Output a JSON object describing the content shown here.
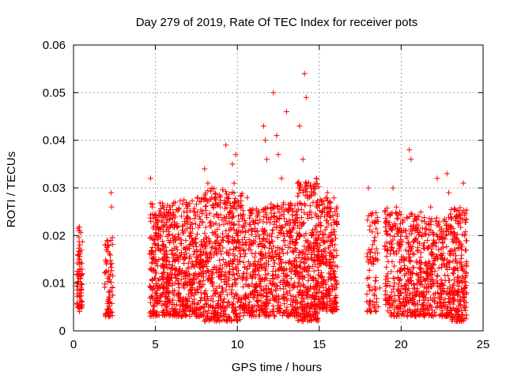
{
  "chart_data": {
    "type": "scatter",
    "title": "Day 279 of 2019, Rate Of TEC Index for receiver pots",
    "xlabel": "GPS time / hours",
    "ylabel": "ROTI / TECUs",
    "xlim": [
      0,
      25
    ],
    "ylim": [
      0,
      0.06
    ],
    "x_ticks": [
      0,
      5,
      10,
      15,
      20,
      25
    ],
    "x_tick_labels": [
      "0",
      "5",
      "10",
      "15",
      "20",
      "25"
    ],
    "y_ticks": [
      0,
      0.01,
      0.02,
      0.03,
      0.04,
      0.05,
      0.06
    ],
    "y_tick_labels": [
      "0",
      "0.01",
      "0.02",
      "0.03",
      "0.04",
      "0.05",
      "0.06"
    ],
    "grid": true,
    "marker": "+",
    "marker_color": "#ff0000",
    "series": [
      {
        "name": "ROTI",
        "points": [
          [
            0.3,
            0.016
          ],
          [
            0.35,
            0.021
          ],
          [
            0.4,
            0.013
          ],
          [
            0.45,
            0.009
          ],
          [
            0.5,
            0.005
          ],
          [
            0.38,
            0.018
          ],
          [
            0.42,
            0.011
          ],
          [
            2.0,
            0.017
          ],
          [
            2.1,
            0.011
          ],
          [
            2.2,
            0.006
          ],
          [
            2.15,
            0.003
          ],
          [
            2.3,
            0.029
          ],
          [
            2.32,
            0.026
          ],
          [
            2.25,
            0.014
          ],
          [
            4.7,
            0.032
          ],
          [
            4.8,
            0.026
          ],
          [
            4.9,
            0.015
          ],
          [
            5.0,
            0.008
          ],
          [
            5.1,
            0.004
          ],
          [
            5.2,
            0.02
          ],
          [
            5.4,
            0.012
          ],
          [
            5.6,
            0.024
          ],
          [
            5.8,
            0.006
          ],
          [
            6.0,
            0.017
          ],
          [
            6.2,
            0.027
          ],
          [
            6.4,
            0.01
          ],
          [
            6.6,
            0.003
          ],
          [
            6.8,
            0.021
          ],
          [
            7.0,
            0.013
          ],
          [
            7.2,
            0.008
          ],
          [
            7.4,
            0.025
          ],
          [
            7.6,
            0.015
          ],
          [
            7.8,
            0.007
          ],
          [
            8.0,
            0.034
          ],
          [
            8.2,
            0.031
          ],
          [
            8.4,
            0.022
          ],
          [
            8.6,
            0.004
          ],
          [
            8.7,
            0.002
          ],
          [
            8.9,
            0.018
          ],
          [
            9.1,
            0.009
          ],
          [
            9.3,
            0.039
          ],
          [
            9.5,
            0.014
          ],
          [
            9.7,
            0.035
          ],
          [
            9.8,
            0.031
          ],
          [
            9.9,
            0.037
          ],
          [
            10.0,
            0.02
          ],
          [
            10.2,
            0.006
          ],
          [
            10.4,
            0.012
          ],
          [
            10.6,
            0.028
          ],
          [
            10.8,
            0.017
          ],
          [
            11.0,
            0.004
          ],
          [
            11.2,
            0.021
          ],
          [
            11.4,
            0.011
          ],
          [
            11.6,
            0.043
          ],
          [
            11.7,
            0.04
          ],
          [
            11.8,
            0.036
          ],
          [
            12.0,
            0.008
          ],
          [
            12.2,
            0.05
          ],
          [
            12.4,
            0.041
          ],
          [
            12.5,
            0.037
          ],
          [
            12.7,
            0.032
          ],
          [
            12.9,
            0.019
          ],
          [
            13.0,
            0.046
          ],
          [
            13.2,
            0.013
          ],
          [
            13.4,
            0.006
          ],
          [
            13.6,
            0.025
          ],
          [
            13.8,
            0.043
          ],
          [
            14.0,
            0.036
          ],
          [
            14.1,
            0.054
          ],
          [
            14.2,
            0.049
          ],
          [
            14.3,
            0.002
          ],
          [
            14.5,
            0.03
          ],
          [
            14.7,
            0.016
          ],
          [
            14.9,
            0.01
          ],
          [
            15.1,
            0.024
          ],
          [
            15.3,
            0.005
          ],
          [
            15.5,
            0.029
          ],
          [
            15.7,
            0.02
          ],
          [
            15.9,
            0.012
          ],
          [
            16.0,
            0.007
          ],
          [
            18.0,
            0.03
          ],
          [
            18.1,
            0.022
          ],
          [
            18.3,
            0.014
          ],
          [
            18.5,
            0.006
          ],
          [
            18.7,
            0.009
          ],
          [
            19.0,
            0.025
          ],
          [
            19.2,
            0.017
          ],
          [
            19.5,
            0.03
          ],
          [
            19.6,
            0.011
          ],
          [
            19.8,
            0.004
          ],
          [
            20.0,
            0.021
          ],
          [
            20.2,
            0.015
          ],
          [
            20.5,
            0.038
          ],
          [
            20.6,
            0.036
          ],
          [
            20.8,
            0.008
          ],
          [
            21.0,
            0.024
          ],
          [
            21.2,
            0.013
          ],
          [
            21.4,
            0.003
          ],
          [
            21.6,
            0.019
          ],
          [
            21.8,
            0.026
          ],
          [
            22.0,
            0.01
          ],
          [
            22.2,
            0.032
          ],
          [
            22.4,
            0.016
          ],
          [
            22.6,
            0.006
          ],
          [
            22.8,
            0.033
          ],
          [
            22.9,
            0.029
          ],
          [
            23.0,
            0.022
          ],
          [
            23.2,
            0.012
          ],
          [
            23.4,
            0.004
          ],
          [
            23.6,
            0.018
          ],
          [
            23.8,
            0.031
          ],
          [
            23.9,
            0.009
          ]
        ]
      }
    ],
    "dense_bands": [
      [
        0.2,
        0.55,
        0.004,
        0.022,
        70
      ],
      [
        1.9,
        2.4,
        0.003,
        0.02,
        70
      ],
      [
        4.65,
        6.5,
        0.003,
        0.027,
        420
      ],
      [
        6.5,
        8.0,
        0.003,
        0.028,
        300
      ],
      [
        8.0,
        10.3,
        0.002,
        0.03,
        460
      ],
      [
        10.3,
        12.0,
        0.003,
        0.026,
        320
      ],
      [
        12.0,
        13.6,
        0.003,
        0.027,
        300
      ],
      [
        13.6,
        15.0,
        0.002,
        0.032,
        360
      ],
      [
        15.0,
        16.1,
        0.004,
        0.028,
        240
      ],
      [
        17.9,
        18.6,
        0.004,
        0.025,
        80
      ],
      [
        19.0,
        19.8,
        0.003,
        0.026,
        120
      ],
      [
        19.8,
        21.5,
        0.003,
        0.025,
        300
      ],
      [
        21.5,
        22.9,
        0.003,
        0.024,
        240
      ],
      [
        22.9,
        24.0,
        0.002,
        0.026,
        240
      ]
    ]
  }
}
